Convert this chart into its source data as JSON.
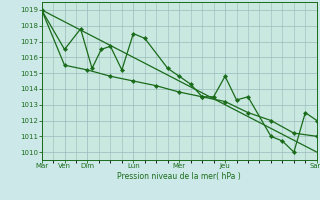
{
  "background_color": "#cce8e8",
  "plot_bg_color": "#c8e8e0",
  "grid_color": "#99bbbb",
  "line_color": "#1a6b1a",
  "xlabel": "Pression niveau de la mer( hPa )",
  "ylim": [
    1009.5,
    1019.5
  ],
  "yticks": [
    1010,
    1011,
    1012,
    1013,
    1014,
    1015,
    1016,
    1017,
    1018,
    1019
  ],
  "xlim": [
    0,
    12
  ],
  "x_tick_positions": [
    0,
    1,
    2,
    4,
    6,
    8,
    12
  ],
  "x_tick_labels": [
    "Mar",
    "Ven",
    "Dim",
    "Lun",
    "Mer",
    "Jeu",
    "Sam"
  ],
  "line1_x": [
    0,
    1.0,
    1.7,
    2.2,
    2.6,
    3.0,
    3.5,
    4.0,
    4.5,
    5.5,
    6.0,
    6.5,
    7.0,
    7.5,
    8.0,
    8.5,
    9.0,
    10.0,
    10.5,
    11.0,
    11.5,
    12.0
  ],
  "line1_y": [
    1019.0,
    1016.5,
    1017.8,
    1015.3,
    1016.5,
    1016.7,
    1015.2,
    1017.5,
    1017.2,
    1015.3,
    1014.8,
    1014.3,
    1013.5,
    1013.5,
    1014.8,
    1013.3,
    1013.5,
    1011.0,
    1010.7,
    1010.0,
    1012.5,
    1012.0
  ],
  "line2_x": [
    0,
    1.0,
    2.0,
    3.0,
    4.0,
    5.0,
    6.0,
    7.0,
    8.0,
    9.0,
    10.0,
    11.0,
    12.0
  ],
  "line2_y": [
    1019.0,
    1015.5,
    1015.2,
    1014.8,
    1014.5,
    1014.2,
    1013.8,
    1013.5,
    1013.2,
    1012.5,
    1012.0,
    1011.2,
    1011.0
  ],
  "line3_x": [
    0,
    12
  ],
  "line3_y": [
    1019.0,
    1010.0
  ],
  "minor_x_step": 0.5,
  "lw": 0.9,
  "markersize": 2.2
}
